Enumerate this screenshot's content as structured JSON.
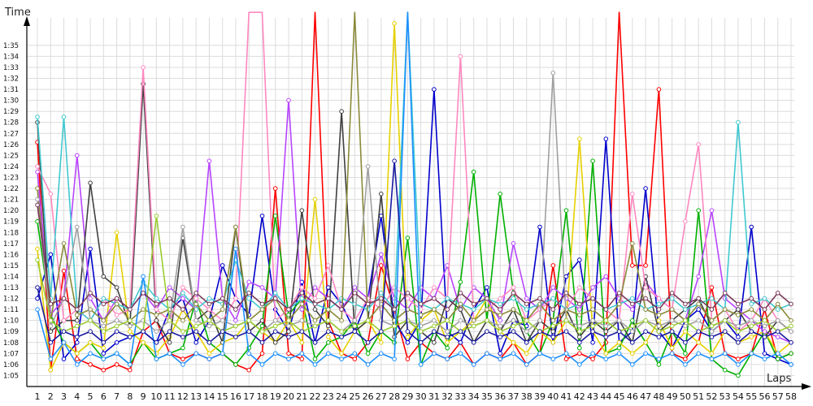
{
  "chart_data": {
    "type": "line",
    "title": "",
    "xlabel": "Laps",
    "ylabel": "Time",
    "x": [
      1,
      2,
      3,
      4,
      5,
      6,
      7,
      8,
      9,
      10,
      11,
      12,
      13,
      14,
      15,
      16,
      17,
      18,
      19,
      20,
      21,
      22,
      23,
      24,
      25,
      26,
      27,
      28,
      29,
      30,
      31,
      32,
      33,
      34,
      35,
      36,
      37,
      38,
      39,
      40,
      41,
      42,
      43,
      44,
      45,
      46,
      47,
      48,
      49,
      50,
      51,
      52,
      53,
      54,
      55,
      56,
      57,
      58
    ],
    "xlim": [
      1,
      58
    ],
    "ylim": [
      64,
      97.5
    ],
    "y_ticks": [
      {
        "v": 65,
        "label": "1:05"
      },
      {
        "v": 66,
        "label": "1:06"
      },
      {
        "v": 67,
        "label": "1:07"
      },
      {
        "v": 68,
        "label": "1:08"
      },
      {
        "v": 69,
        "label": "1:09"
      },
      {
        "v": 70,
        "label": "1:10"
      },
      {
        "v": 71,
        "label": "1:11"
      },
      {
        "v": 72,
        "label": "1:12"
      },
      {
        "v": 73,
        "label": "1:13"
      },
      {
        "v": 74,
        "label": "1:14"
      },
      {
        "v": 75,
        "label": "1:15"
      },
      {
        "v": 76,
        "label": "1:16"
      },
      {
        "v": 77,
        "label": "1:17"
      },
      {
        "v": 78,
        "label": "1:18"
      },
      {
        "v": 79,
        "label": "1:19"
      },
      {
        "v": 80,
        "label": "1:20"
      },
      {
        "v": 81,
        "label": "1:21"
      },
      {
        "v": 82,
        "label": "1:22"
      },
      {
        "v": 83,
        "label": "1:23"
      },
      {
        "v": 84,
        "label": "1:24"
      },
      {
        "v": 85,
        "label": "1:25"
      },
      {
        "v": 86,
        "label": "1:26"
      },
      {
        "v": 87,
        "label": "1:27"
      },
      {
        "v": 88,
        "label": "1:28"
      },
      {
        "v": 89,
        "label": "1:29"
      },
      {
        "v": 90,
        "label": "1:30"
      },
      {
        "v": 91,
        "label": "1:31"
      },
      {
        "v": 92,
        "label": "1:32"
      },
      {
        "v": 93,
        "label": "1:33"
      },
      {
        "v": 94,
        "label": "1:34"
      },
      {
        "v": 95,
        "label": "1:35"
      }
    ],
    "grid": true,
    "legend": "none",
    "series": [
      {
        "color": "#ff0000",
        "values": [
          86.2,
          65.5,
          74.5,
          66.5,
          66.0,
          65.5,
          66.0,
          65.5,
          69.0,
          70.0,
          67.0,
          66.5,
          67.0,
          66.5,
          67.0,
          66.0,
          65.5,
          67.0,
          82.0,
          67.0,
          66.5,
          120,
          70.0,
          67.0,
          66.5,
          68.0,
          75.0,
          71.0,
          66.5,
          68.0,
          67.0,
          66.5,
          68.0,
          66.0,
          67.0,
          66.5,
          68.0,
          66.0,
          67.0,
          75.0,
          66.5,
          67.0,
          66.5,
          68.0,
          120,
          75.0,
          75.0,
          91.0,
          67.0,
          66.5,
          68.0,
          73.0,
          67.0,
          66.5,
          67.0,
          71.0,
          66.5,
          67.0
        ]
      },
      {
        "color": "#0000cc",
        "values": [
          72.0,
          76.0,
          66.5,
          68.0,
          76.5,
          67.0,
          68.0,
          68.5,
          69.0,
          68.0,
          71.0,
          72.0,
          68.0,
          70.0,
          75.0,
          72.0,
          70.5,
          79.5,
          71.0,
          69.0,
          73.5,
          68.0,
          73.0,
          71.5,
          69.0,
          72.0,
          79.5,
          70.0,
          68.0,
          70.0,
          91.0,
          69.0,
          68.0,
          71.0,
          73.0,
          67.0,
          70.0,
          69.5,
          78.5,
          68.0,
          74.0,
          75.5,
          68.0,
          86.5,
          68.0,
          69.0,
          82.0,
          69.0,
          67.5,
          70.0,
          71.0,
          69.0,
          70.0,
          68.5,
          78.5,
          67.0,
          66.5,
          66.0
        ]
      },
      {
        "color": "#00b000",
        "values": [
          79.0,
          70.5,
          68.0,
          67.0,
          68.0,
          66.5,
          67.0,
          66.0,
          68.0,
          66.5,
          67.0,
          67.5,
          72.0,
          68.0,
          67.0,
          66.0,
          67.5,
          69.5,
          79.5,
          70.5,
          72.0,
          66.5,
          68.0,
          68.5,
          70.0,
          67.0,
          69.0,
          68.0,
          77.5,
          66.0,
          69.0,
          67.5,
          73.5,
          83.5,
          70.0,
          81.5,
          72.5,
          69.0,
          67.0,
          70.0,
          80.0,
          67.5,
          84.5,
          67.0,
          67.5,
          70.0,
          68.0,
          66.0,
          69.0,
          67.0,
          80.0,
          66.5,
          65.5,
          65.0,
          67.0,
          69.0,
          66.5,
          67.0
        ]
      },
      {
        "color": "#e6d000",
        "values": [
          76.5,
          65.5,
          68.0,
          67.0,
          68.0,
          67.5,
          78.0,
          69.0,
          68.0,
          67.0,
          68.5,
          71.0,
          69.0,
          67.0,
          68.0,
          68.5,
          70.0,
          69.0,
          68.0,
          70.0,
          68.0,
          81.0,
          68.5,
          67.0,
          69.0,
          70.0,
          68.0,
          97.0,
          68.5,
          70.0,
          71.0,
          68.0,
          69.0,
          70.0,
          72.0,
          69.0,
          68.0,
          67.0,
          69.0,
          68.0,
          70.0,
          86.5,
          69.0,
          67.0,
          68.0,
          67.0,
          68.0,
          70.0,
          67.5,
          69.0,
          68.0,
          67.0,
          69.0,
          68.0,
          68.5,
          69.0,
          67.0,
          68.0
        ]
      },
      {
        "color": "#b844ff",
        "values": [
          83.5,
          70.5,
          72.0,
          85.0,
          72.0,
          70.0,
          72.0,
          71.0,
          72.5,
          71.0,
          73.0,
          72.0,
          71.0,
          84.5,
          72.0,
          70.0,
          73.5,
          73.0,
          72.0,
          90.0,
          71.0,
          73.0,
          72.0,
          71.0,
          73.0,
          72.0,
          76.0,
          72.0,
          71.0,
          73.0,
          72.0,
          75.0,
          71.0,
          73.0,
          72.0,
          70.0,
          77.0,
          72.0,
          71.0,
          73.0,
          72.0,
          71.0,
          73.0,
          74.0,
          72.0,
          71.0,
          73.5,
          72.0,
          71.0,
          70.0,
          74.0,
          80.0,
          72.0,
          71.0,
          70.0,
          69.0,
          68.5,
          68.0
        ]
      },
      {
        "color": "#404040",
        "values": [
          88.0,
          69.0,
          70.0,
          70.0,
          82.5,
          74.0,
          73.0,
          69.5,
          91.5,
          70.0,
          68.0,
          77.5,
          70.0,
          71.0,
          68.0,
          78.5,
          69.0,
          70.0,
          68.0,
          69.0,
          80.0,
          71.0,
          69.5,
          89.0,
          69.0,
          70.0,
          81.5,
          68.5,
          70.0,
          69.0,
          68.0,
          72.0,
          71.0,
          68.0,
          70.0,
          69.0,
          71.0,
          68.0,
          70.0,
          69.0,
          71.0,
          68.5,
          70.0,
          69.0,
          70.0,
          68.0,
          74.0,
          69.0,
          70.0,
          71.0,
          72.0,
          69.5,
          70.0,
          71.0,
          69.0,
          68.5,
          70.0,
          69.0
        ]
      },
      {
        "color": "#ff88c0",
        "values": [
          84.0,
          81.5,
          70.0,
          71.0,
          70.0,
          72.0,
          70.5,
          71.0,
          93.0,
          71.0,
          70.0,
          73.0,
          72.0,
          71.0,
          70.0,
          72.0,
          120,
          120,
          70.0,
          71.0,
          73.0,
          72.0,
          75.0,
          71.0,
          70.0,
          72.0,
          71.0,
          73.0,
          72.0,
          71.0,
          73.0,
          72.0,
          94.0,
          70.0,
          71.0,
          72.0,
          73.0,
          70.0,
          71.0,
          72.0,
          71.0,
          73.0,
          72.0,
          71.0,
          70.0,
          81.5,
          73.0,
          72.0,
          71.0,
          79.0,
          86.0,
          70.0,
          71.0,
          69.0,
          70.0,
          72.0,
          70.0,
          69.0
        ]
      },
      {
        "color": "#40c8d0",
        "values": [
          88.5,
          72.0,
          88.5,
          71.0,
          70.0,
          72.0,
          71.5,
          71.0,
          73.5,
          72.0,
          71.0,
          72.5,
          71.0,
          72.0,
          71.5,
          75.5,
          72.0,
          71.0,
          72.5,
          71.0,
          72.0,
          71.5,
          71.0,
          72.0,
          71.5,
          71.0,
          72.5,
          71.0,
          120,
          71.5,
          71.0,
          72.0,
          71.5,
          71.0,
          72.0,
          71.5,
          72.0,
          71.0,
          71.5,
          72.0,
          71.0,
          71.5,
          72.0,
          71.0,
          71.5,
          72.0,
          71.0,
          71.5,
          72.0,
          71.0,
          71.5,
          72.0,
          71.0,
          88.0,
          71.5,
          72.0,
          71.0,
          71.5
        ]
      },
      {
        "color": "#8a8a3a",
        "values": [
          82.0,
          70.0,
          77.0,
          70.5,
          71.0,
          70.0,
          71.5,
          70.0,
          71.0,
          70.5,
          71.0,
          70.0,
          71.5,
          70.0,
          71.0,
          78.5,
          70.0,
          71.0,
          72.0,
          70.0,
          71.5,
          70.0,
          71.0,
          70.0,
          120,
          70.0,
          71.5,
          70.0,
          71.0,
          70.5,
          71.0,
          70.0,
          71.5,
          70.0,
          71.0,
          70.5,
          71.0,
          70.0,
          71.5,
          70.0,
          71.0,
          70.5,
          71.0,
          70.0,
          71.5,
          77.0,
          71.0,
          70.5,
          71.0,
          70.0,
          71.5,
          70.0,
          71.0,
          70.5,
          71.0,
          70.0,
          71.5,
          70.0
        ]
      },
      {
        "color": "#a0a0a0",
        "values": [
          81.0,
          69.5,
          72.0,
          78.5,
          70.0,
          69.5,
          70.0,
          69.5,
          70.0,
          69.0,
          70.0,
          78.5,
          70.0,
          69.5,
          70.0,
          69.5,
          70.0,
          69.0,
          70.0,
          69.5,
          70.0,
          69.5,
          70.0,
          69.0,
          70.0,
          84.0,
          70.0,
          69.5,
          70.0,
          69.5,
          70.0,
          69.0,
          70.0,
          69.5,
          70.0,
          69.5,
          70.0,
          69.0,
          70.0,
          92.5,
          70.0,
          69.5,
          70.0,
          69.5,
          70.0,
          69.0,
          70.0,
          69.5,
          70.0,
          69.5,
          70.0,
          69.0,
          70.0,
          69.5,
          70.0,
          69.5,
          70.0,
          69.0
        ]
      },
      {
        "color": "#1e90ff",
        "values": [
          71.0,
          66.5,
          68.0,
          66.0,
          67.0,
          66.5,
          67.0,
          66.0,
          74.0,
          66.5,
          67.0,
          66.0,
          67.0,
          66.5,
          67.0,
          76.5,
          67.0,
          66.0,
          67.0,
          66.5,
          67.0,
          66.0,
          67.0,
          66.5,
          67.0,
          66.0,
          67.0,
          66.5,
          120,
          66.0,
          67.0,
          66.5,
          67.0,
          66.0,
          67.0,
          66.5,
          67.0,
          66.0,
          67.0,
          66.5,
          67.0,
          66.0,
          67.0,
          66.5,
          67.0,
          66.0,
          67.0,
          66.5,
          67.0,
          66.0,
          67.0,
          66.5,
          67.0,
          66.0,
          67.0,
          66.5,
          67.0,
          66.0
        ]
      },
      {
        "color": "#9acd32",
        "values": [
          75.5,
          70.0,
          69.0,
          69.5,
          70.0,
          69.0,
          69.5,
          70.0,
          69.0,
          79.5,
          70.0,
          69.0,
          69.5,
          70.0,
          69.0,
          69.5,
          70.0,
          69.0,
          69.5,
          70.0,
          69.0,
          69.5,
          70.0,
          69.0,
          69.5,
          70.0,
          69.0,
          69.5,
          70.0,
          69.0,
          69.5,
          70.0,
          69.0,
          69.5,
          70.0,
          69.0,
          69.5,
          70.0,
          69.0,
          69.5,
          70.0,
          69.0,
          69.5,
          70.0,
          69.0,
          69.5,
          70.0,
          69.0,
          69.5,
          70.0,
          69.0,
          69.5,
          70.0,
          69.0,
          69.5,
          70.0,
          69.0,
          69.5
        ]
      },
      {
        "color": "#1a1aa0",
        "values": [
          73.0,
          68.0,
          69.0,
          68.5,
          69.0,
          68.0,
          69.0,
          68.5,
          69.0,
          68.0,
          69.0,
          68.5,
          69.0,
          68.0,
          69.0,
          68.5,
          69.0,
          68.0,
          69.0,
          68.5,
          69.0,
          68.0,
          69.0,
          68.5,
          69.0,
          68.0,
          69.0,
          84.5,
          69.0,
          68.0,
          69.0,
          68.5,
          69.0,
          68.0,
          69.0,
          68.5,
          69.0,
          68.0,
          69.0,
          68.5,
          69.0,
          68.0,
          69.0,
          68.5,
          69.0,
          68.0,
          69.0,
          68.5,
          69.0,
          68.0,
          69.0,
          68.5,
          69.0,
          68.0,
          69.0,
          68.5,
          69.0,
          68.0
        ]
      },
      {
        "color": "#7a3a5a",
        "values": [
          80.5,
          71.5,
          72.0,
          71.0,
          72.5,
          71.5,
          72.0,
          71.0,
          72.5,
          71.5,
          72.0,
          71.0,
          72.5,
          71.5,
          72.0,
          71.0,
          72.5,
          71.5,
          72.0,
          71.0,
          72.5,
          71.5,
          72.0,
          71.0,
          72.5,
          71.5,
          72.0,
          71.0,
          72.5,
          71.5,
          72.0,
          71.0,
          72.5,
          71.5,
          72.0,
          71.0,
          72.5,
          71.5,
          72.0,
          71.0,
          72.5,
          71.5,
          72.0,
          71.0,
          72.5,
          71.5,
          72.0,
          71.0,
          72.5,
          71.5,
          72.0,
          71.0,
          72.5,
          71.5,
          72.0,
          71.0,
          72.5,
          71.5
        ]
      }
    ]
  }
}
